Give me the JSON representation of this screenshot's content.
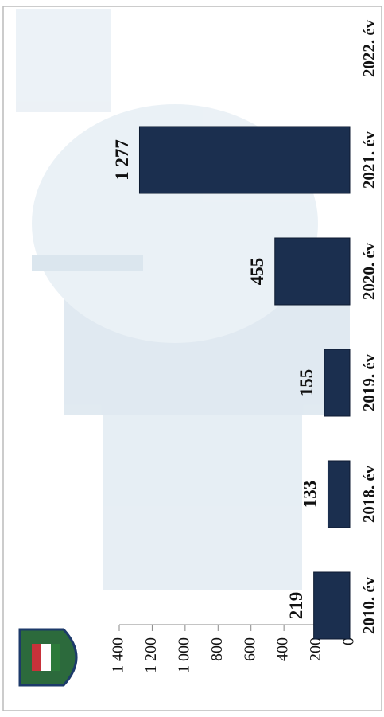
{
  "chart_data": {
    "type": "bar",
    "categories": [
      "2010. év",
      "2018. év",
      "2019. év",
      "2020. év",
      "2021. év",
      "2022. év"
    ],
    "values": [
      219,
      133,
      155,
      455,
      1277,
      null
    ],
    "value_labels": [
      "219",
      "133",
      "155",
      "455",
      "1 277",
      null
    ],
    "color": "#1b2f4f",
    "ylim": [
      0,
      1400
    ],
    "yticks": [
      0,
      200,
      400,
      600,
      800,
      {
        "value": 1000,
        "label": "1 000"
      },
      {
        "value": 1200,
        "label": "1 200"
      },
      {
        "value": 1400,
        "label": "1 400"
      }
    ]
  }
}
